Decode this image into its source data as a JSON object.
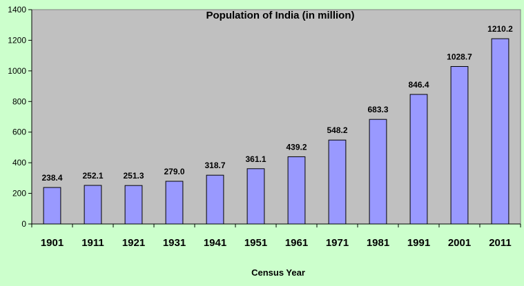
{
  "chart_data": {
    "type": "bar",
    "title": "Population of India (in million)",
    "xlabel": "Census Year",
    "ylabel": "",
    "ylim": [
      0,
      1400
    ],
    "yticks": [
      "0",
      "200",
      "400",
      "600",
      "800",
      "1000",
      "1200",
      "1400"
    ],
    "categories": [
      "1901",
      "1911",
      "1921",
      "1931",
      "1941",
      "1951",
      "1961",
      "1971",
      "1981",
      "1991",
      "2001",
      "2011"
    ],
    "values": [
      238.4,
      252.1,
      251.3,
      279.0,
      318.7,
      361.1,
      439.2,
      548.2,
      683.3,
      846.4,
      1028.7,
      1210.2
    ],
    "value_labels": [
      "238.4",
      "252.1",
      "251.3",
      "279.0",
      "318.7",
      "361.1",
      "439.2",
      "548.2",
      "683.3",
      "846.4",
      "1028.7",
      "1210.2"
    ],
    "grid": false,
    "legend": "none",
    "colors": {
      "background": "#ccffcc",
      "plot_area": "#c0c0c0",
      "bar_fill": "#9999ff",
      "bar_stroke": "#000000",
      "text": "#000000"
    }
  }
}
